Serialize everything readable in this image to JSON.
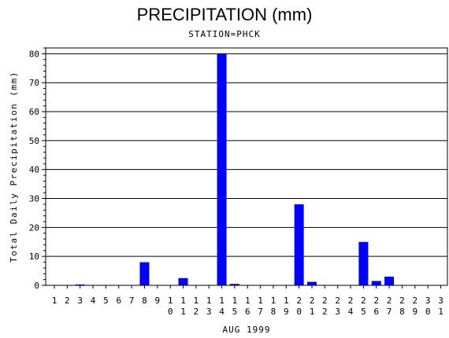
{
  "chart_data": {
    "type": "bar",
    "title": "PRECIPITATION (mm)",
    "subtitle": "STATION=PHCK",
    "xlabel": "AUG 1999",
    "ylabel": "Total Daily Precipitation (mm)",
    "categories": [
      "1",
      "2",
      "3",
      "4",
      "5",
      "6",
      "7",
      "8",
      "9",
      "10",
      "11",
      "12",
      "13",
      "14",
      "15",
      "16",
      "17",
      "18",
      "19",
      "20",
      "21",
      "22",
      "23",
      "24",
      "25",
      "26",
      "27",
      "28",
      "29",
      "30",
      "31"
    ],
    "values": [
      0,
      0,
      0.3,
      0,
      0,
      0,
      0,
      8,
      0,
      0,
      2.5,
      0,
      0,
      80,
      0.5,
      0,
      0,
      0,
      0,
      28,
      1.2,
      0,
      0,
      0,
      15,
      1.5,
      3,
      0,
      0,
      0,
      0
    ],
    "ylim": [
      0,
      82
    ],
    "yticks": [
      0,
      10,
      20,
      30,
      40,
      50,
      60,
      70,
      80
    ],
    "grid": true,
    "bar_color": "#0000ff"
  }
}
